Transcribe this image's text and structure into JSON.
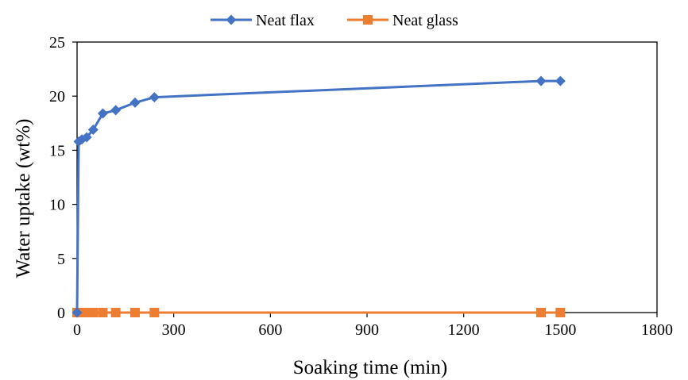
{
  "chart_data": {
    "type": "line",
    "title": "",
    "xlabel": "Soaking time (min)",
    "ylabel": "Water uptake (wt%)",
    "xlim": [
      0,
      1800
    ],
    "ylim": [
      0,
      25
    ],
    "xticks": [
      0,
      300,
      600,
      900,
      1200,
      1500,
      1800
    ],
    "yticks": [
      0,
      5,
      10,
      15,
      20,
      25
    ],
    "grid": false,
    "legend_position": "top",
    "series": [
      {
        "name": "Neat flax",
        "color": "#4472C4",
        "marker": "diamond",
        "points": [
          [
            0,
            0
          ],
          [
            5,
            15.8
          ],
          [
            15,
            16.0
          ],
          [
            30,
            16.2
          ],
          [
            50,
            16.9
          ],
          [
            80,
            18.4
          ],
          [
            120,
            18.7
          ],
          [
            180,
            19.4
          ],
          [
            240,
            19.9
          ],
          [
            1440,
            21.4
          ],
          [
            1500,
            21.4
          ]
        ]
      },
      {
        "name": "Neat glass",
        "color": "#ED7D31",
        "marker": "square",
        "points": [
          [
            0,
            0
          ],
          [
            5,
            0
          ],
          [
            15,
            0
          ],
          [
            30,
            0
          ],
          [
            50,
            0
          ],
          [
            80,
            0
          ],
          [
            120,
            0
          ],
          [
            180,
            0
          ],
          [
            240,
            0
          ],
          [
            1440,
            0
          ],
          [
            1500,
            0
          ]
        ]
      }
    ]
  }
}
